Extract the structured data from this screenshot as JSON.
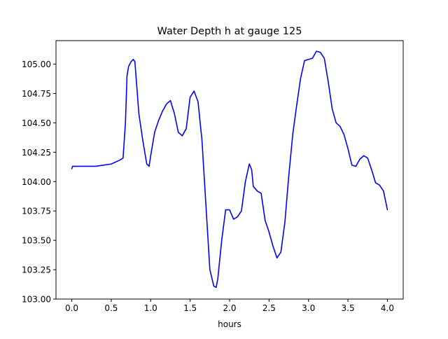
{
  "chart_data": {
    "type": "line",
    "title": "Water Depth h at gauge 125",
    "xlabel": "hours",
    "ylabel": "",
    "xlim": [
      -0.2,
      4.2
    ],
    "ylim": [
      103.0,
      105.2
    ],
    "grid": false,
    "xticks": [
      0.0,
      0.5,
      1.0,
      1.5,
      2.0,
      2.5,
      3.0,
      3.5,
      4.0
    ],
    "xtick_labels": [
      "0.0",
      "0.5",
      "1.0",
      "1.5",
      "2.0",
      "2.5",
      "3.0",
      "3.5",
      "4.0"
    ],
    "yticks": [
      103.0,
      103.25,
      103.5,
      103.75,
      104.0,
      104.25,
      104.5,
      104.75,
      105.0
    ],
    "ytick_labels": [
      "103.00",
      "103.25",
      "103.50",
      "103.75",
      "104.00",
      "104.25",
      "104.50",
      "104.75",
      "105.00"
    ],
    "series": [
      {
        "color": "#0000ff",
        "x": [
          0.0,
          0.01,
          0.1,
          0.2,
          0.3,
          0.4,
          0.5,
          0.6,
          0.65,
          0.68,
          0.7,
          0.72,
          0.75,
          0.78,
          0.8,
          0.85,
          0.9,
          0.95,
          0.98,
          1.0,
          1.05,
          1.1,
          1.15,
          1.2,
          1.25,
          1.3,
          1.35,
          1.4,
          1.45,
          1.5,
          1.55,
          1.6,
          1.65,
          1.7,
          1.75,
          1.8,
          1.83,
          1.85,
          1.9,
          1.95,
          2.0,
          2.05,
          2.1,
          2.15,
          2.2,
          2.25,
          2.28,
          2.3,
          2.35,
          2.4,
          2.45,
          2.5,
          2.55,
          2.6,
          2.65,
          2.7,
          2.75,
          2.8,
          2.85,
          2.9,
          2.95,
          3.0,
          3.05,
          3.1,
          3.15,
          3.2,
          3.25,
          3.3,
          3.35,
          3.4,
          3.45,
          3.5,
          3.55,
          3.6,
          3.65,
          3.7,
          3.75,
          3.8,
          3.85,
          3.9,
          3.95,
          4.0
        ],
        "y": [
          104.11,
          104.13,
          104.13,
          104.13,
          104.13,
          104.14,
          104.15,
          104.18,
          104.2,
          104.5,
          104.9,
          104.98,
          105.02,
          105.04,
          105.02,
          104.58,
          104.35,
          104.15,
          104.13,
          104.22,
          104.42,
          104.52,
          104.6,
          104.66,
          104.69,
          104.58,
          104.42,
          104.39,
          104.45,
          104.72,
          104.77,
          104.68,
          104.35,
          103.8,
          103.25,
          103.11,
          103.1,
          103.17,
          103.5,
          103.76,
          103.76,
          103.68,
          103.7,
          103.75,
          104.0,
          104.15,
          104.1,
          103.96,
          103.92,
          103.9,
          103.67,
          103.57,
          103.45,
          103.35,
          103.4,
          103.65,
          104.05,
          104.4,
          104.65,
          104.88,
          105.03,
          105.04,
          105.05,
          105.11,
          105.1,
          105.05,
          104.85,
          104.62,
          104.5,
          104.47,
          104.4,
          104.28,
          104.14,
          104.13,
          104.19,
          104.22,
          104.2,
          104.1,
          103.99,
          103.97,
          103.92,
          103.76
        ]
      }
    ]
  }
}
